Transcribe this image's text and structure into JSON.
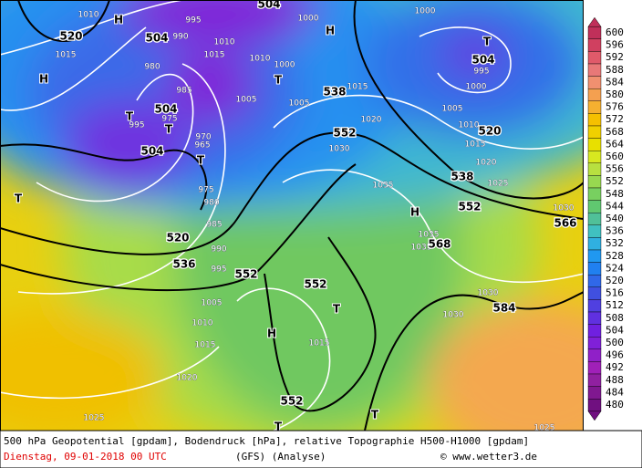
{
  "map": {
    "labels": [
      "1010",
      "H",
      "995",
      "504",
      "1000",
      "H",
      "1000",
      "520",
      "504",
      "990",
      "1010",
      "T",
      "504",
      "1015",
      "980",
      "1015",
      "1010",
      "1000",
      "995",
      "H",
      "T",
      "1000",
      "985",
      "1005",
      "538",
      "1015",
      "T",
      "504",
      "975",
      "995",
      "1005",
      "1005",
      "1020",
      "1010",
      "T",
      "520",
      "970",
      "965",
      "552",
      "1030",
      "1015",
      "504",
      "T",
      "1020",
      "538",
      "1025",
      "975",
      "1035",
      "980",
      "552",
      "H",
      "1030",
      "985",
      "566",
      "T",
      "520",
      "990",
      "1035",
      "1035",
      "568",
      "536",
      "995",
      "552",
      "552",
      "1030",
      "1005",
      "T",
      "1030",
      "584",
      "1010",
      "H",
      "1015",
      "1015",
      "1020",
      "552",
      "1025",
      "T",
      "T",
      "1025"
    ]
  },
  "colorbar": {
    "ticks": [
      600,
      596,
      592,
      588,
      584,
      580,
      576,
      572,
      568,
      564,
      560,
      556,
      552,
      548,
      544,
      540,
      536,
      532,
      528,
      524,
      520,
      516,
      512,
      508,
      504,
      500,
      496,
      492,
      488,
      484,
      480
    ],
    "colors": [
      "#c0305a",
      "#d04060",
      "#e05a6a",
      "#e87878",
      "#f09070",
      "#f4a050",
      "#f5b030",
      "#f5c000",
      "#f0d000",
      "#e8e000",
      "#d8e820",
      "#b8e040",
      "#98d850",
      "#78d060",
      "#60c870",
      "#50c098",
      "#40c0c0",
      "#30b0e0",
      "#2098f0",
      "#2080f0",
      "#3068e8",
      "#4050e0",
      "#5040e0",
      "#6030e0",
      "#7020e0",
      "#8020d8",
      "#9020c8",
      "#a020b8",
      "#9020a0",
      "#801890",
      "#701080"
    ]
  },
  "footer": {
    "description": "500 hPa Geopotential [gpdam], Bodendruck [hPa], relative Topographie H500-H1000 [gpdam]",
    "date": "Dienstag, 09-01-2018  00 UTC",
    "model": "(GFS)  (Analyse)",
    "credit": "© www.wetter3.de"
  }
}
